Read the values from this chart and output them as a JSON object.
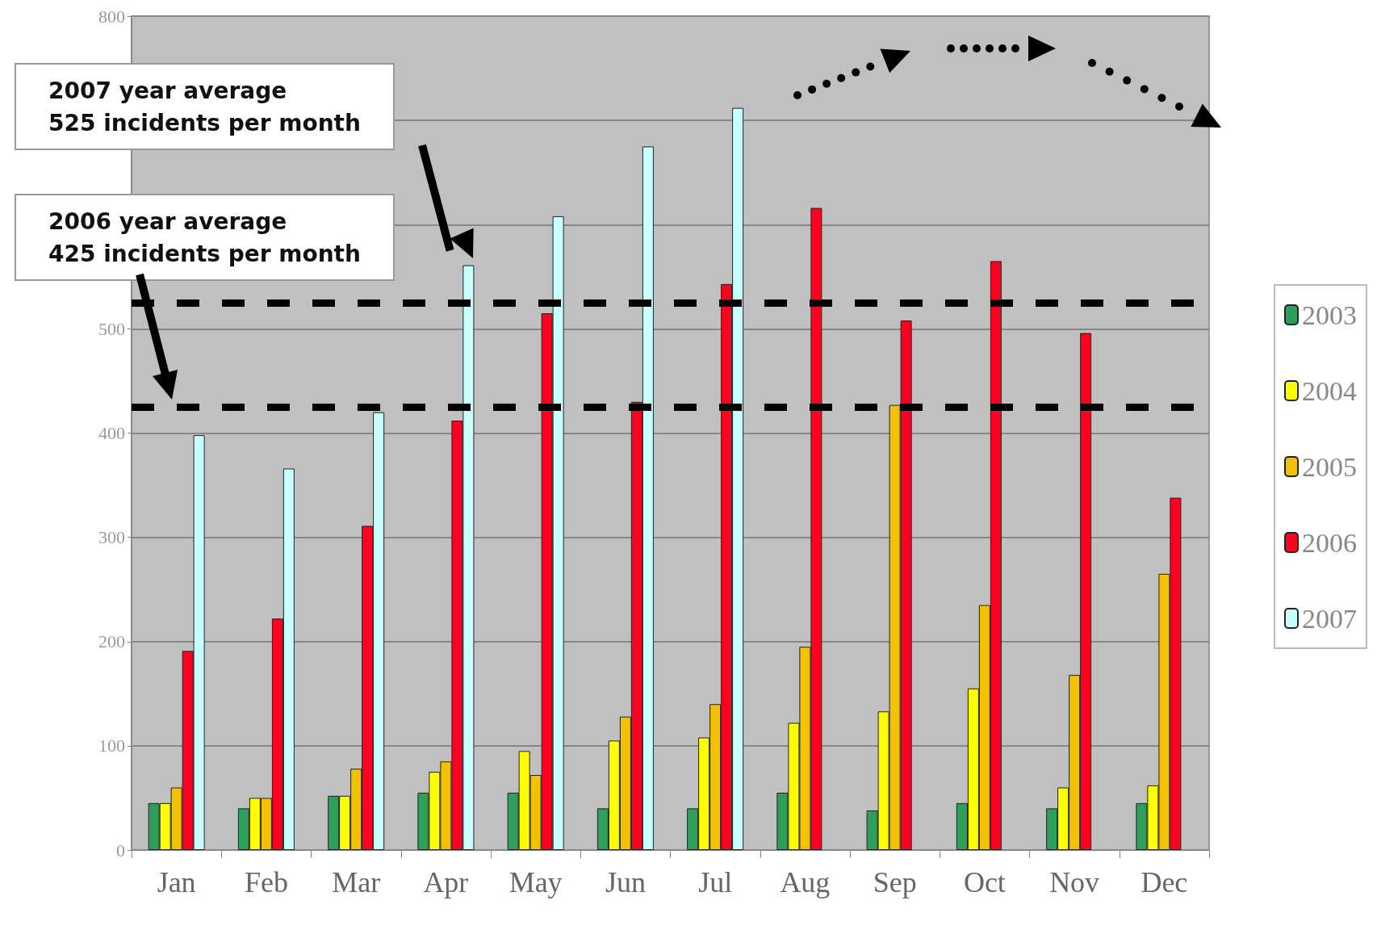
{
  "chart_data": {
    "type": "bar",
    "categories": [
      "Jan",
      "Feb",
      "Mar",
      "Apr",
      "May",
      "Jun",
      "Jul",
      "Aug",
      "Sep",
      "Oct",
      "Nov",
      "Dec"
    ],
    "series": [
      {
        "name": "2003",
        "color": "#2e9e5b",
        "values": [
          45,
          40,
          52,
          55,
          55,
          40,
          40,
          55,
          38,
          45,
          40,
          45
        ]
      },
      {
        "name": "2004",
        "color": "#ffff00",
        "values": [
          45,
          50,
          52,
          75,
          95,
          105,
          108,
          122,
          133,
          155,
          60,
          62
        ]
      },
      {
        "name": "2005",
        "color": "#f2c200",
        "values": [
          60,
          50,
          78,
          85,
          72,
          128,
          140,
          195,
          427,
          235,
          168,
          265
        ]
      },
      {
        "name": "2006",
        "color": "#ff0020",
        "values": [
          191,
          222,
          311,
          412,
          515,
          430,
          543,
          616,
          508,
          565,
          496,
          338
        ]
      },
      {
        "name": "2007",
        "color": "#c8ffff",
        "values": [
          398,
          366,
          420,
          561,
          608,
          675,
          712,
          null,
          null,
          null,
          null,
          null
        ]
      }
    ],
    "ylim": [
      0,
      800
    ],
    "yticks": [
      0,
      100,
      200,
      300,
      400,
      500,
      {
        "value": 600,
        "label": null
      },
      {
        "value": 700,
        "label": null
      },
      800
    ],
    "grid": "y",
    "legend": "right",
    "ref_lines": [
      {
        "axis": "y",
        "value": 525,
        "color": "#000000",
        "line_style": "dashed"
      },
      {
        "axis": "y",
        "value": 425,
        "color": "#000000",
        "line_style": "dashed"
      }
    ],
    "annotations": [
      "2007 year average\n525 incidents per month",
      "2006 year average\n425 incidents per month"
    ]
  }
}
